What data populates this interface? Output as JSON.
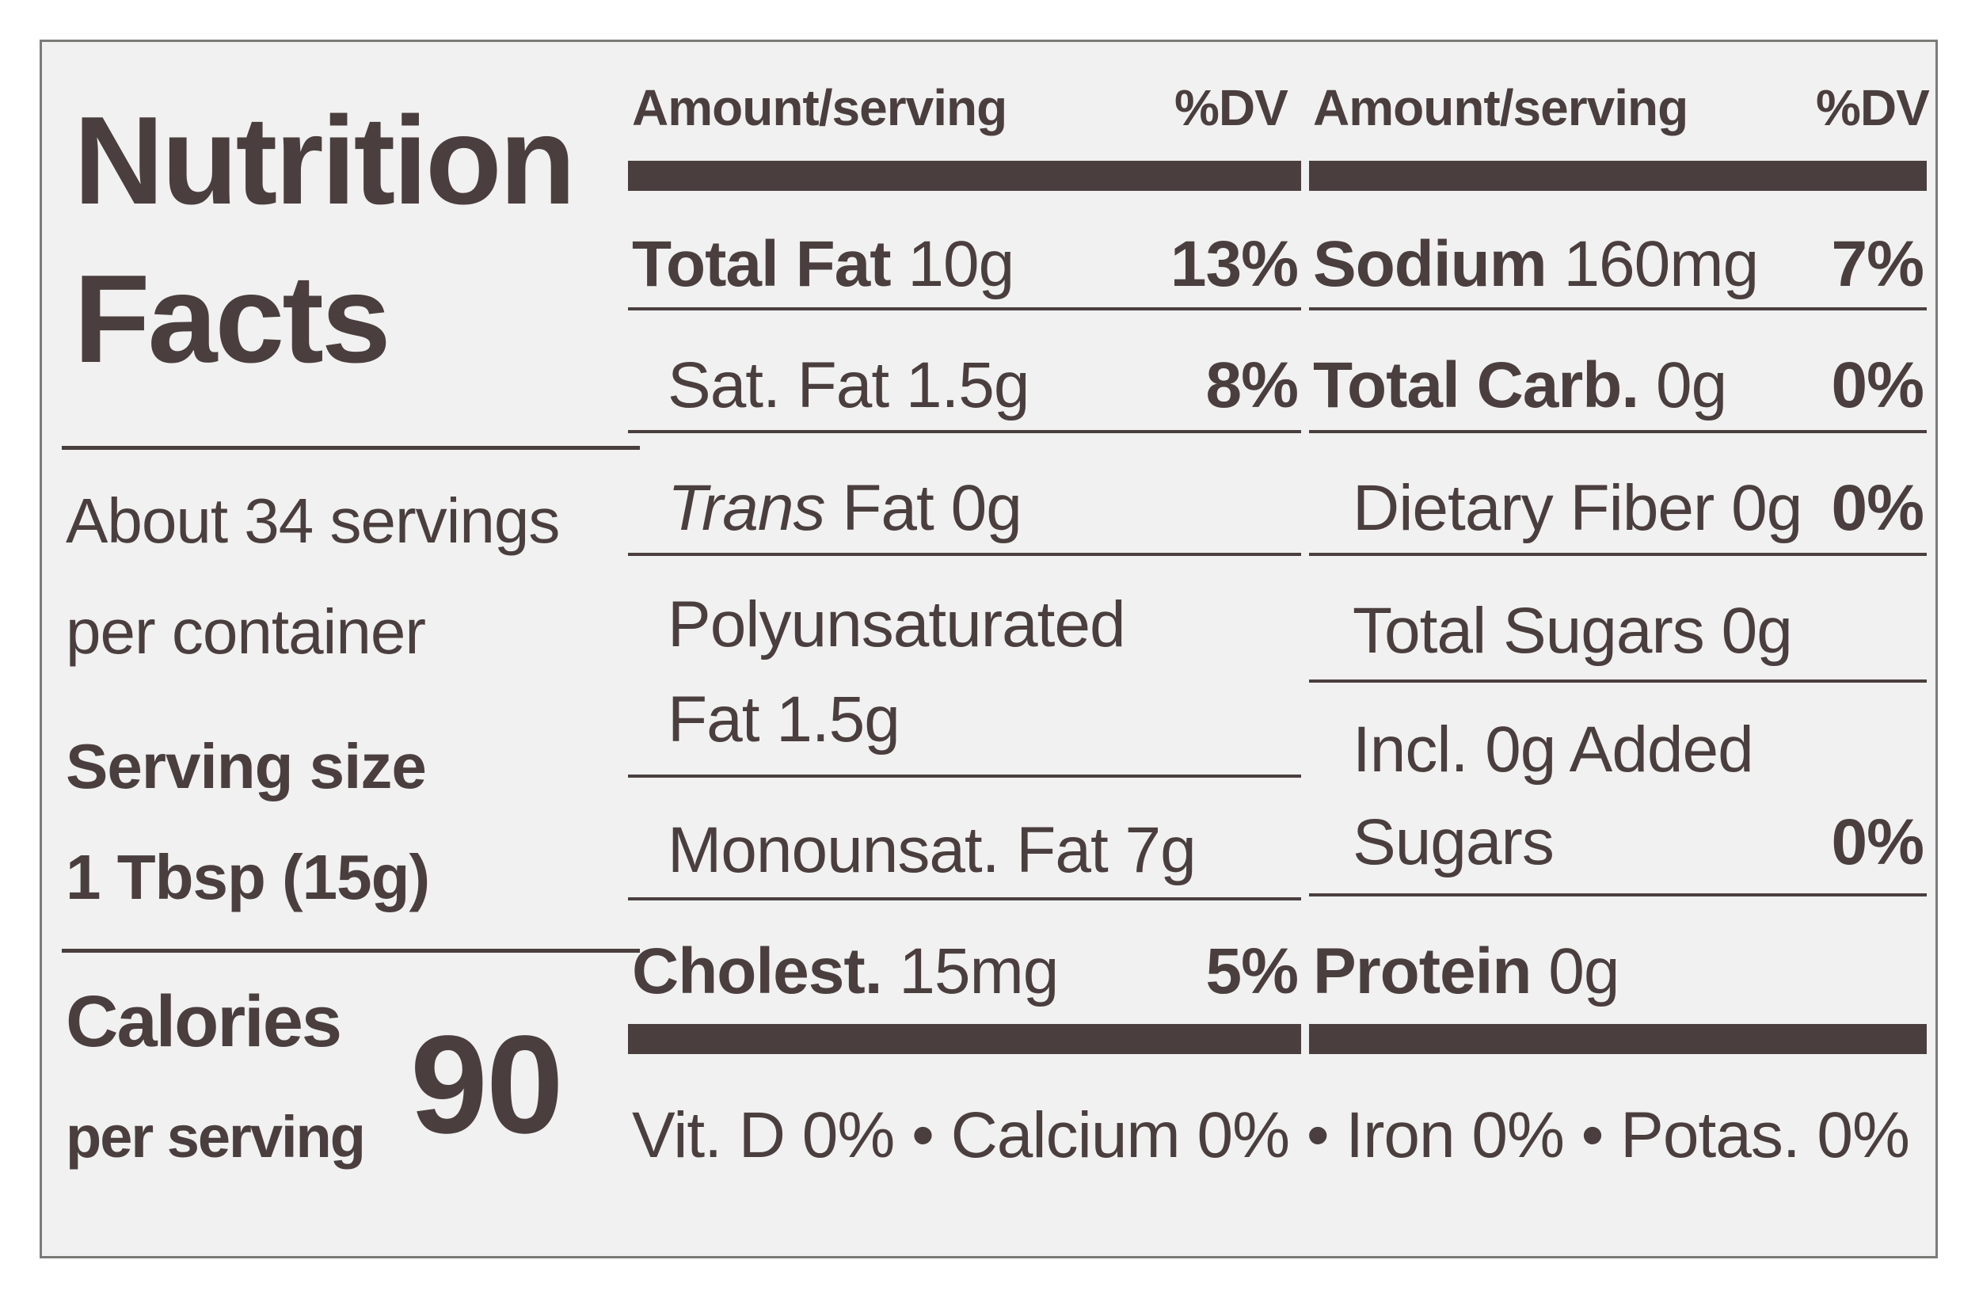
{
  "title": {
    "line1": "Nutrition",
    "line2": "Facts"
  },
  "servings": {
    "line1": "About 34 servings",
    "line2": "per container"
  },
  "serving_size": {
    "label": "Serving size",
    "value": "1 Tbsp (15g)"
  },
  "calories": {
    "label": "Calories",
    "sub": "per serving",
    "value": "90"
  },
  "headers": {
    "amount": "Amount/serving",
    "dv": "%DV"
  },
  "left_column": [
    {
      "name": "Total Fat",
      "amount": "10g",
      "dv": "13%"
    },
    {
      "name": "Sat. Fat",
      "amount": "1.5g",
      "dv": "8%"
    },
    {
      "name": "Trans",
      "amount": "Fat 0g",
      "dv": ""
    },
    {
      "line1": "Polyunsaturated",
      "line2": "Fat 1.5g",
      "dv": ""
    },
    {
      "text": "Monounsat. Fat 7g",
      "dv": ""
    },
    {
      "name": "Cholest.",
      "amount": "15mg",
      "dv": "5%"
    }
  ],
  "right_column": [
    {
      "name": "Sodium",
      "amount": "160mg",
      "dv": "7%"
    },
    {
      "name": "Total Carb.",
      "amount": "0g",
      "dv": "0%"
    },
    {
      "text": "Dietary Fiber 0g",
      "dv": "0%"
    },
    {
      "text": "Total Sugars 0g",
      "dv": ""
    },
    {
      "line1": "Incl. 0g Added",
      "line2": "Sugars",
      "dv": "0%"
    },
    {
      "name": "Protein",
      "amount": "0g",
      "dv": ""
    }
  ],
  "footer": "Vit. D 0% • Calcium 0% • Iron 0% • Potas. 0%",
  "colors": {
    "ink": "#4a3f3e",
    "panel": "#f0f1f0",
    "border": "#7b7a78"
  }
}
